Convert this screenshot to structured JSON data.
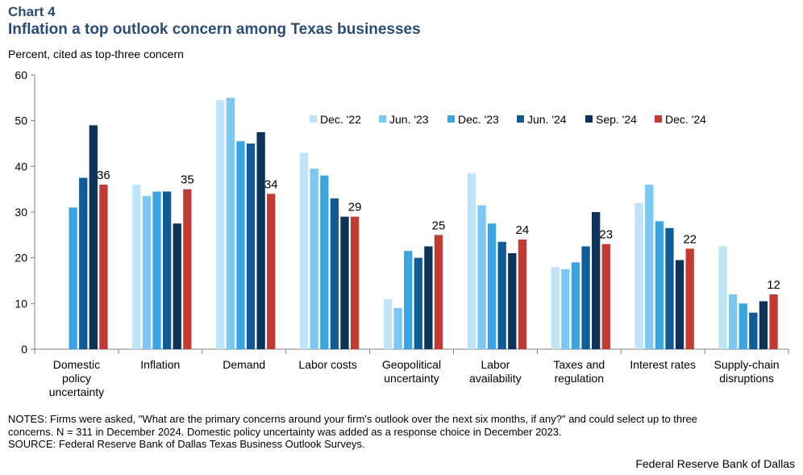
{
  "header": {
    "chart_label": "Chart 4",
    "title": "Inflation a top outlook concern among Texas businesses",
    "y_title": "Percent, cited as top-three concern"
  },
  "notes": {
    "line1": "NOTES: Firms were asked, \"What are the primary concerns around your firm's outlook over the next six months, if any?\" and could select up to three",
    "line2": "concerns. N = 311 in December 2024. Domestic policy uncertainty was added as a response choice in December 2023.",
    "line3": "SOURCE: Federal Reserve Bank of Dallas Texas Business Outlook Surveys."
  },
  "credit": "Federal Reserve Bank of Dallas",
  "chart_data": {
    "type": "bar",
    "title": "Inflation a top outlook concern among Texas businesses",
    "ylabel": "Percent, cited as top-three concern",
    "ylim": [
      0,
      60
    ],
    "yticks": [
      0,
      10,
      20,
      30,
      40,
      50,
      60
    ],
    "grid": false,
    "legend_position": "top-right",
    "categories": [
      [
        "Domestic",
        "policy",
        "uncertainty"
      ],
      [
        "Inflation"
      ],
      [
        "Demand"
      ],
      [
        "Labor costs"
      ],
      [
        "Geopolitical",
        "uncertainty"
      ],
      [
        "Labor",
        "availability"
      ],
      [
        "Taxes and",
        "regulation"
      ],
      [
        "Interest rates"
      ],
      [
        "Supply-chain",
        "disruptions"
      ]
    ],
    "series": [
      {
        "name": "Dec. '22",
        "color": "#bfe3f7",
        "values": [
          null,
          36,
          54.5,
          43,
          11,
          38.5,
          18,
          32,
          22.5
        ]
      },
      {
        "name": "Jun. '23",
        "color": "#7cc8f2",
        "values": [
          null,
          33.5,
          55,
          39.5,
          9,
          31.5,
          17.5,
          36,
          12
        ]
      },
      {
        "name": "Dec. '23",
        "color": "#3aa3e2",
        "values": [
          31,
          34.5,
          45.5,
          38,
          21.5,
          27.5,
          19,
          28,
          10
        ]
      },
      {
        "name": "Jun. '24",
        "color": "#0f5c96",
        "values": [
          37.5,
          34.5,
          45,
          33,
          20,
          23.5,
          22.5,
          26.5,
          8
        ]
      },
      {
        "name": "Sep. '24",
        "color": "#0c3357",
        "values": [
          49,
          27.5,
          47.5,
          29,
          22.5,
          21,
          30,
          19.5,
          10.5
        ]
      },
      {
        "name": "Dec. '24",
        "color": "#c23b33",
        "values": [
          36,
          35,
          34,
          29,
          25,
          24,
          23,
          22,
          12
        ]
      }
    ],
    "data_labels": {
      "series": "Dec. '24",
      "values": [
        "36",
        "35",
        "34",
        "29",
        "25",
        "24",
        "23",
        "22",
        "12"
      ]
    }
  }
}
